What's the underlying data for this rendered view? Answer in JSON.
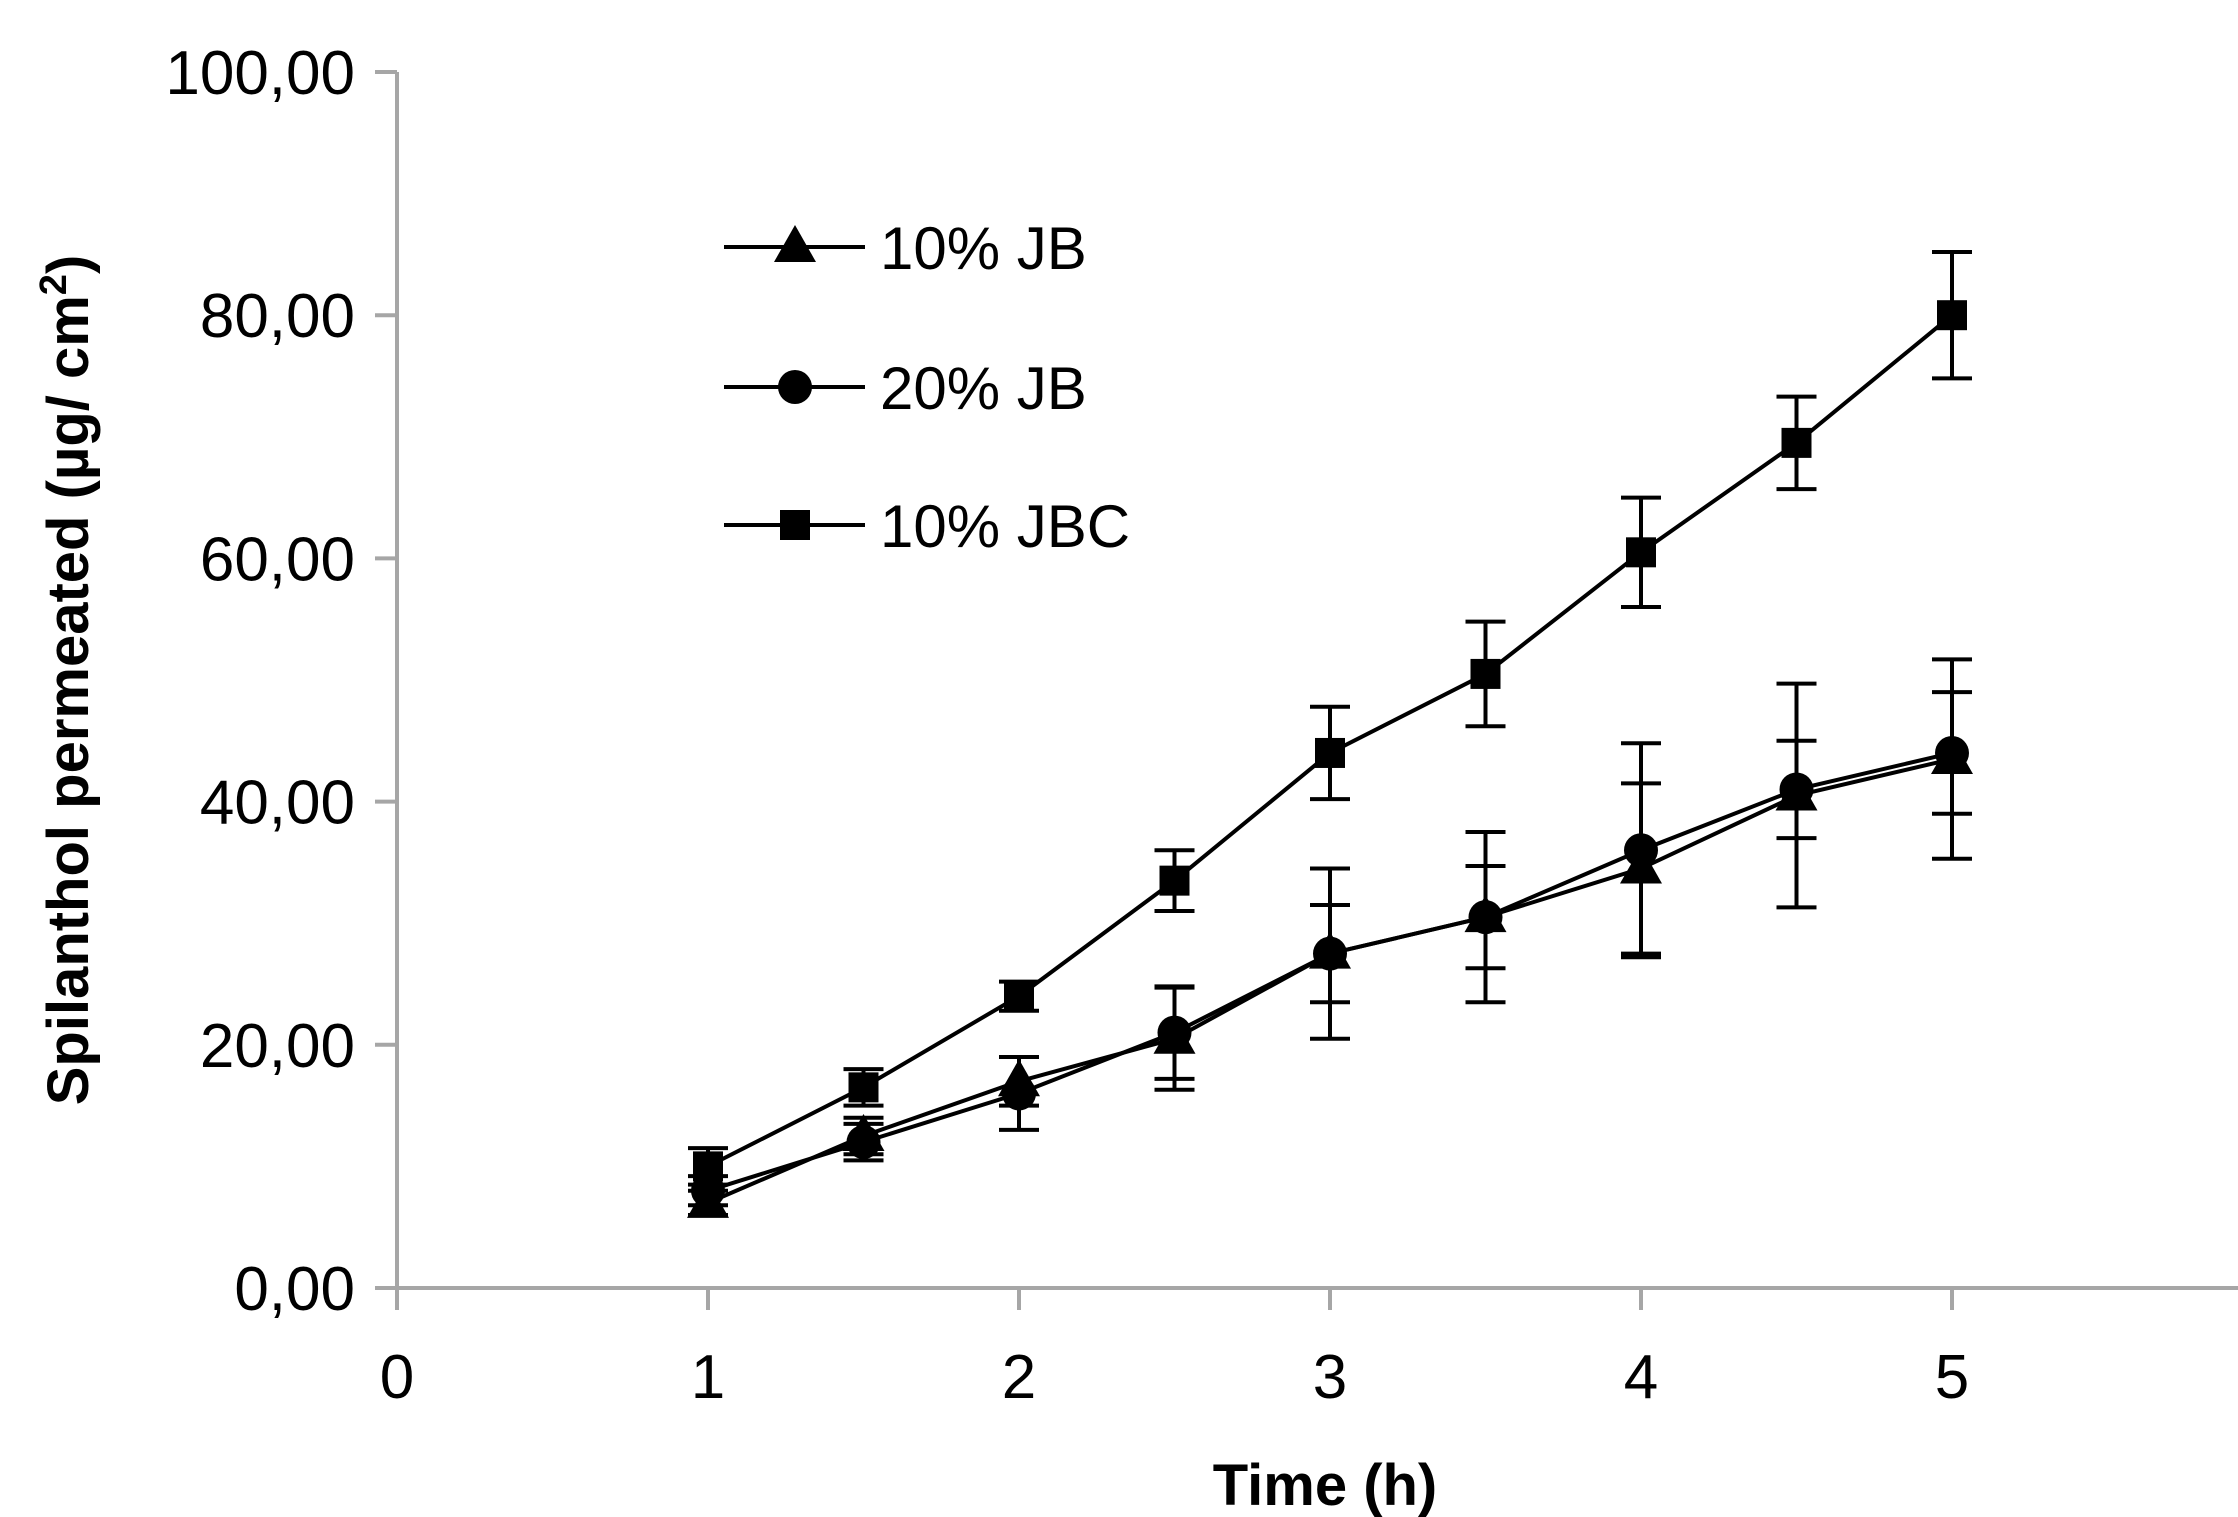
{
  "chart_data": {
    "type": "line",
    "title": "",
    "xlabel": "Time (h)",
    "ylabel": "Spilanthol permeated (µg/ cm²)",
    "ylabel_parts": {
      "main": "Spilanthol permeated (µg/ cm",
      "sup": "2",
      "end": ")"
    },
    "xlim": [
      0,
      6
    ],
    "ylim": [
      0,
      100
    ],
    "x_ticks": [
      0,
      1,
      2,
      3,
      4,
      5
    ],
    "x_tick_labels": [
      "0",
      "1",
      "2",
      "3",
      "4",
      "5"
    ],
    "y_ticks": [
      0,
      20,
      40,
      60,
      80,
      100
    ],
    "y_tick_labels": [
      "0,00",
      "20,00",
      "40,00",
      "60,00",
      "80,00",
      "100,00"
    ],
    "grid": false,
    "legend_position": "top-left",
    "x": [
      1,
      1.5,
      2,
      2.5,
      3,
      3.5,
      4,
      4.5,
      5
    ],
    "series": [
      {
        "name": "10% JB",
        "marker": "triangle",
        "values": [
          7.0,
          12.5,
          17.0,
          20.5,
          27.5,
          30.5,
          34.5,
          40.5,
          43.5
        ],
        "errors": [
          1.0,
          1.5,
          2.0,
          4.2,
          7.0,
          7.0,
          7.0,
          9.2,
          8.2
        ]
      },
      {
        "name": "20% JB",
        "marker": "circle",
        "values": [
          8.0,
          12.0,
          16.0,
          21.0,
          27.5,
          30.5,
          36.0,
          41.0,
          44.0
        ],
        "errors": [
          1.2,
          1.5,
          3.0,
          3.8,
          4.0,
          4.2,
          8.8,
          4.0,
          5.0
        ]
      },
      {
        "name": "10% JBC",
        "marker": "square",
        "values": [
          10.0,
          16.5,
          24.0,
          33.5,
          44.0,
          50.5,
          60.5,
          69.5,
          80.0
        ],
        "errors": [
          1.5,
          1.5,
          1.2,
          2.5,
          3.8,
          4.3,
          4.5,
          3.8,
          5.2
        ]
      }
    ],
    "colors": {
      "line": "#000000",
      "axis": "#a6a6a6"
    }
  }
}
